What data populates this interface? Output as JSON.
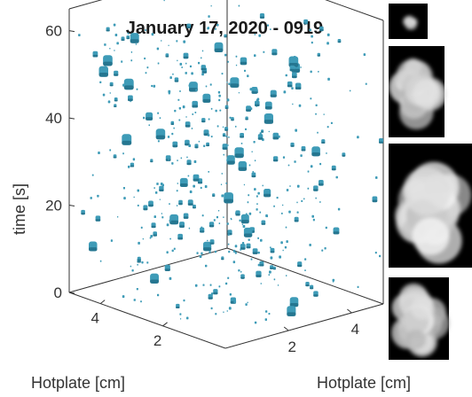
{
  "chart_data": {
    "type": "scatter3d",
    "title": "January 17, 2020 - 0919",
    "zlabel": "time [s]",
    "xlabel": "Hotplate [cm]",
    "ylabel": "Hotplate [cm]",
    "zlim": [
      0,
      65
    ],
    "z_ticks": [
      0,
      20,
      40,
      60
    ],
    "z_tick_labels": [
      "0",
      "20",
      "40",
      "60"
    ],
    "x_ticks": [
      2,
      4
    ],
    "x_tick_labels": [
      "2",
      "4"
    ],
    "y_ticks": [
      2,
      4
    ],
    "y_tick_labels": [
      "2",
      "4"
    ],
    "xlim": [
      0,
      5
    ],
    "ylim": [
      0,
      5
    ],
    "grid": false,
    "box": true,
    "marker_color": "#3e9bb7",
    "marker_shade": "#1f6d86",
    "insets": [
      {
        "name": "particle-image-1",
        "count": 1
      },
      {
        "name": "particle-image-2",
        "count": 1
      },
      {
        "name": "particle-image-3",
        "count": 1
      },
      {
        "name": "particle-image-4",
        "count": 1
      }
    ]
  },
  "colors": {
    "background": "#ffffff",
    "axis": "#333333",
    "inset_background": "#000000",
    "particle": "#cfcfcf"
  }
}
